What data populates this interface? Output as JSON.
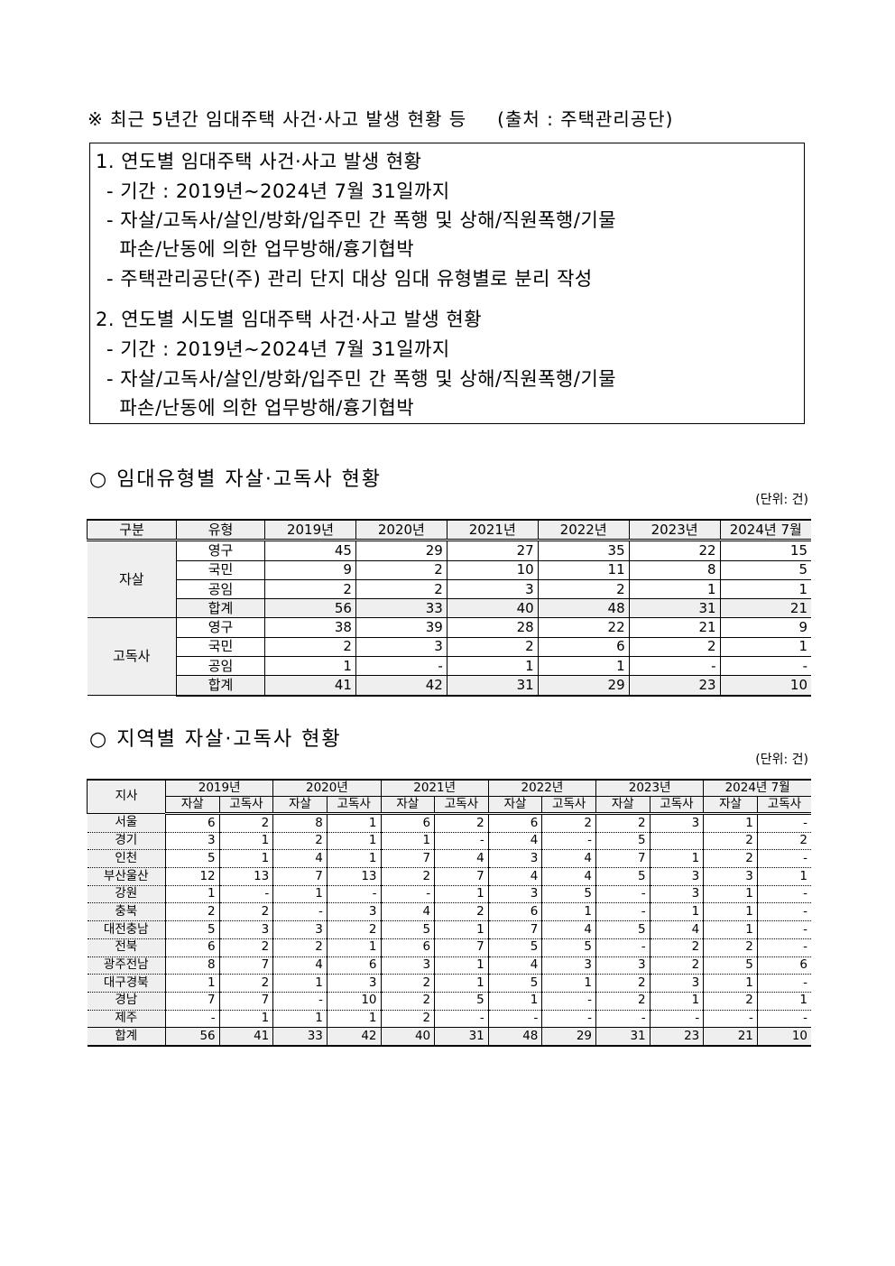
{
  "note": {
    "title": "※ 최근 5년간 임대주택 사건·사고 발생 현황 등",
    "source": "(출처 : 주택관리공단)"
  },
  "box": {
    "items": [
      {
        "heading": "1. 연도별 임대주택 사건·사고 발생 현황",
        "lines": [
          "- 기간 : 2019년~2024년 7월 31일까지",
          "- 자살/고독사/살인/방화/입주민 간 폭행 및 상해/직원폭행/기물",
          "  파손/난동에 의한 업무방해/흉기협박",
          "- 주택관리공단(주) 관리 단지 대상 임대 유형별로 분리 작성"
        ]
      },
      {
        "heading": "2. 연도별 시도별 임대주택 사건·사고 발생 현황",
        "lines": [
          "- 기간 : 2019년~2024년 7월 31일까지",
          "- 자살/고독사/살인/방화/입주민 간 폭행 및 상해/직원폭행/기물",
          "  파손/난동에 의한 업무방해/흉기협박"
        ]
      }
    ]
  },
  "section1": {
    "title": "○ 임대유형별 자살·고독사 현황",
    "unit": "(단위: 건)",
    "headers": [
      "구분",
      "유형",
      "2019년",
      "2020년",
      "2021년",
      "2022년",
      "2023년",
      "2024년 7월"
    ],
    "groups": [
      {
        "name": "자살",
        "rows": [
          {
            "type": "영구",
            "values": [
              "45",
              "29",
              "27",
              "35",
              "22",
              "15"
            ]
          },
          {
            "type": "국민",
            "values": [
              "9",
              "2",
              "10",
              "11",
              "8",
              "5"
            ]
          },
          {
            "type": "공임",
            "values": [
              "2",
              "2",
              "3",
              "2",
              "1",
              "1"
            ]
          },
          {
            "type": "합계",
            "values": [
              "56",
              "33",
              "40",
              "48",
              "31",
              "21"
            ]
          }
        ]
      },
      {
        "name": "고독사",
        "rows": [
          {
            "type": "영구",
            "values": [
              "38",
              "39",
              "28",
              "22",
              "21",
              "9"
            ]
          },
          {
            "type": "국민",
            "values": [
              "2",
              "3",
              "2",
              "6",
              "2",
              "1"
            ]
          },
          {
            "type": "공임",
            "values": [
              "1",
              "-",
              "1",
              "1",
              "-",
              "-"
            ]
          },
          {
            "type": "합계",
            "values": [
              "41",
              "42",
              "31",
              "29",
              "23",
              "10"
            ]
          }
        ]
      }
    ]
  },
  "section2": {
    "title": "○ 지역별 자살·고독사 현황",
    "unit": "(단위: 건)",
    "corner": "지사",
    "years": [
      "2019년",
      "2020년",
      "2021년",
      "2022년",
      "2023년",
      "2024년 7월"
    ],
    "subheaders": [
      "자살",
      "고독사"
    ],
    "rows": [
      {
        "region": "서울",
        "values": [
          "6",
          "2",
          "8",
          "1",
          "6",
          "2",
          "6",
          "2",
          "2",
          "3",
          "1",
          "-"
        ]
      },
      {
        "region": "경기",
        "values": [
          "3",
          "1",
          "2",
          "1",
          "1",
          "-",
          "4",
          "-",
          "5",
          "",
          "2",
          "2"
        ]
      },
      {
        "region": "인천",
        "values": [
          "5",
          "1",
          "4",
          "1",
          "7",
          "4",
          "3",
          "4",
          "7",
          "1",
          "2",
          "-"
        ]
      },
      {
        "region": "부산울산",
        "values": [
          "12",
          "13",
          "7",
          "13",
          "2",
          "7",
          "4",
          "4",
          "5",
          "3",
          "3",
          "1"
        ]
      },
      {
        "region": "강원",
        "values": [
          "1",
          "-",
          "1",
          "-",
          "-",
          "1",
          "3",
          "5",
          "-",
          "3",
          "1",
          "-"
        ]
      },
      {
        "region": "충북",
        "values": [
          "2",
          "2",
          "-",
          "3",
          "4",
          "2",
          "6",
          "1",
          "-",
          "1",
          "1",
          "-"
        ]
      },
      {
        "region": "대전충남",
        "values": [
          "5",
          "3",
          "3",
          "2",
          "5",
          "1",
          "7",
          "4",
          "5",
          "4",
          "1",
          "-"
        ]
      },
      {
        "region": "전북",
        "values": [
          "6",
          "2",
          "2",
          "1",
          "6",
          "7",
          "5",
          "5",
          "-",
          "2",
          "2",
          "-"
        ]
      },
      {
        "region": "광주전남",
        "values": [
          "8",
          "7",
          "4",
          "6",
          "3",
          "1",
          "4",
          "3",
          "3",
          "2",
          "5",
          "6"
        ]
      },
      {
        "region": "대구경북",
        "values": [
          "1",
          "2",
          "1",
          "3",
          "2",
          "1",
          "5",
          "1",
          "2",
          "3",
          "1",
          "-"
        ]
      },
      {
        "region": "경남",
        "values": [
          "7",
          "7",
          "-",
          "10",
          "2",
          "5",
          "1",
          "-",
          "2",
          "1",
          "2",
          "1"
        ]
      },
      {
        "region": "제주",
        "values": [
          "-",
          "1",
          "1",
          "1",
          "2",
          "-",
          "-",
          "-",
          "-",
          "-",
          "-",
          "-"
        ]
      },
      {
        "region": "합계",
        "values": [
          "56",
          "41",
          "33",
          "42",
          "40",
          "31",
          "48",
          "29",
          "31",
          "23",
          "21",
          "10"
        ]
      }
    ]
  }
}
